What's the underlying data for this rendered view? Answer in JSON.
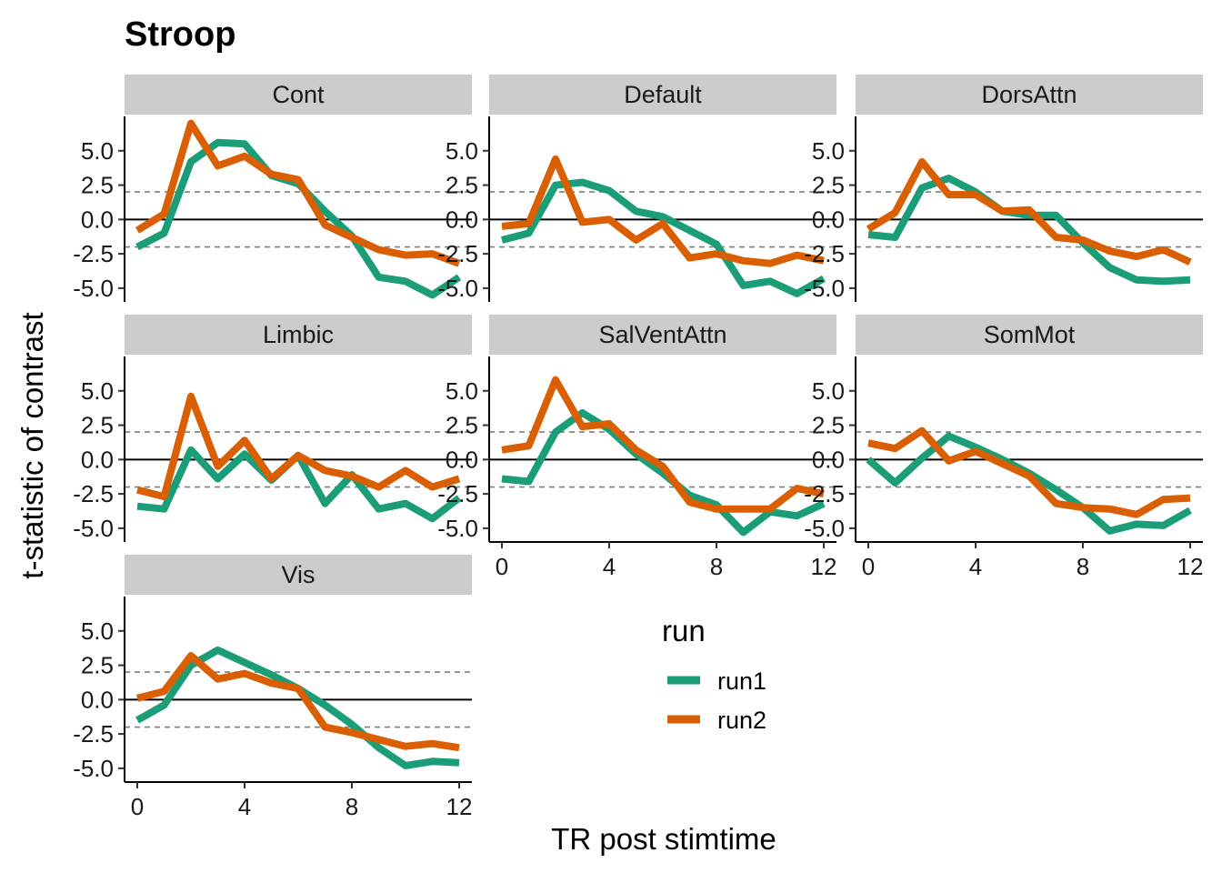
{
  "chart_data": {
    "type": "line",
    "title": "Stroop",
    "xlabel": "TR post stimtime",
    "ylabel": "t-statistic of contrast",
    "x": [
      0,
      1,
      2,
      3,
      4,
      5,
      6,
      7,
      8,
      9,
      10,
      11,
      12
    ],
    "xlim": [
      0,
      12
    ],
    "x_ticks": [
      "0",
      "4",
      "8",
      "12"
    ],
    "ylim": [
      -6,
      7.5
    ],
    "y_ticks": [
      "5.0",
      "2.5",
      "0.0",
      "-2.5",
      "-5.0"
    ],
    "reference_lines": [
      {
        "y": 0,
        "style": "solid"
      },
      {
        "y": 2,
        "style": "dashed"
      },
      {
        "y": -2,
        "style": "dashed"
      }
    ],
    "legend": {
      "title": "run",
      "entries": [
        {
          "name": "run1",
          "color": "#1b9e77"
        },
        {
          "name": "run2",
          "color": "#d95f02"
        }
      ]
    },
    "panels": [
      {
        "name": "Cont",
        "series": [
          {
            "name": "run1",
            "values": [
              -2.0,
              -1.0,
              4.2,
              5.6,
              5.5,
              3.2,
              2.6,
              0.6,
              -1.2,
              -4.2,
              -4.5,
              -5.5,
              -4.2
            ]
          },
          {
            "name": "run2",
            "values": [
              -0.8,
              0.4,
              7.0,
              3.9,
              4.6,
              3.3,
              2.9,
              -0.4,
              -1.3,
              -2.2,
              -2.6,
              -2.5,
              -3.2
            ]
          }
        ]
      },
      {
        "name": "Default",
        "series": [
          {
            "name": "run1",
            "values": [
              -1.5,
              -1.0,
              2.5,
              2.7,
              2.1,
              0.6,
              0.2,
              -0.8,
              -1.8,
              -4.8,
              -4.5,
              -5.4,
              -4.3
            ]
          },
          {
            "name": "run2",
            "values": [
              -0.5,
              -0.3,
              4.4,
              -0.2,
              0.0,
              -1.5,
              -0.3,
              -2.8,
              -2.5,
              -3.0,
              -3.2,
              -2.6,
              -3.0
            ]
          }
        ]
      },
      {
        "name": "DorsAttn",
        "series": [
          {
            "name": "run1",
            "values": [
              -1.1,
              -1.3,
              2.3,
              3.0,
              2.0,
              0.6,
              0.3,
              0.3,
              -1.7,
              -3.5,
              -4.4,
              -4.5,
              -4.4
            ]
          },
          {
            "name": "run2",
            "values": [
              -0.7,
              0.5,
              4.2,
              1.8,
              1.8,
              0.6,
              0.7,
              -1.3,
              -1.5,
              -2.3,
              -2.7,
              -2.2,
              -3.1
            ]
          }
        ]
      },
      {
        "name": "Limbic",
        "series": [
          {
            "name": "run1",
            "values": [
              -3.4,
              -3.6,
              0.7,
              -1.4,
              0.4,
              -1.5,
              0.3,
              -3.2,
              -1.1,
              -3.6,
              -3.2,
              -4.3,
              -2.8
            ]
          },
          {
            "name": "run2",
            "values": [
              -2.2,
              -2.7,
              4.6,
              -0.5,
              1.4,
              -1.4,
              0.3,
              -0.8,
              -1.2,
              -2.0,
              -0.8,
              -2.0,
              -1.4
            ]
          }
        ]
      },
      {
        "name": "SalVentAttn",
        "series": [
          {
            "name": "run1",
            "values": [
              -1.4,
              -1.6,
              2.0,
              3.4,
              2.2,
              0.4,
              -1.0,
              -2.6,
              -3.3,
              -5.3,
              -3.8,
              -4.1,
              -3.2
            ]
          },
          {
            "name": "run2",
            "values": [
              0.7,
              1.0,
              5.8,
              2.4,
              2.6,
              0.7,
              -0.5,
              -3.1,
              -3.6,
              -3.6,
              -3.6,
              -2.1,
              -2.5
            ]
          }
        ]
      },
      {
        "name": "SomMot",
        "series": [
          {
            "name": "run1",
            "values": [
              0.0,
              -1.7,
              0.1,
              1.7,
              0.9,
              0.0,
              -1.0,
              -2.2,
              -3.5,
              -5.2,
              -4.7,
              -4.8,
              -3.7
            ]
          },
          {
            "name": "run2",
            "values": [
              1.2,
              0.8,
              2.1,
              -0.1,
              0.6,
              -0.3,
              -1.2,
              -3.2,
              -3.5,
              -3.6,
              -4.0,
              -2.9,
              -2.8
            ]
          }
        ]
      },
      {
        "name": "Vis",
        "series": [
          {
            "name": "run1",
            "values": [
              -1.5,
              -0.4,
              2.5,
              3.6,
              2.7,
              1.8,
              0.8,
              -0.4,
              -1.8,
              -3.5,
              -4.8,
              -4.5,
              -4.6
            ]
          },
          {
            "name": "run2",
            "values": [
              0.1,
              0.6,
              3.2,
              1.5,
              1.9,
              1.2,
              0.8,
              -2.0,
              -2.4,
              -2.9,
              -3.4,
              -3.2,
              -3.5
            ]
          }
        ]
      }
    ]
  }
}
